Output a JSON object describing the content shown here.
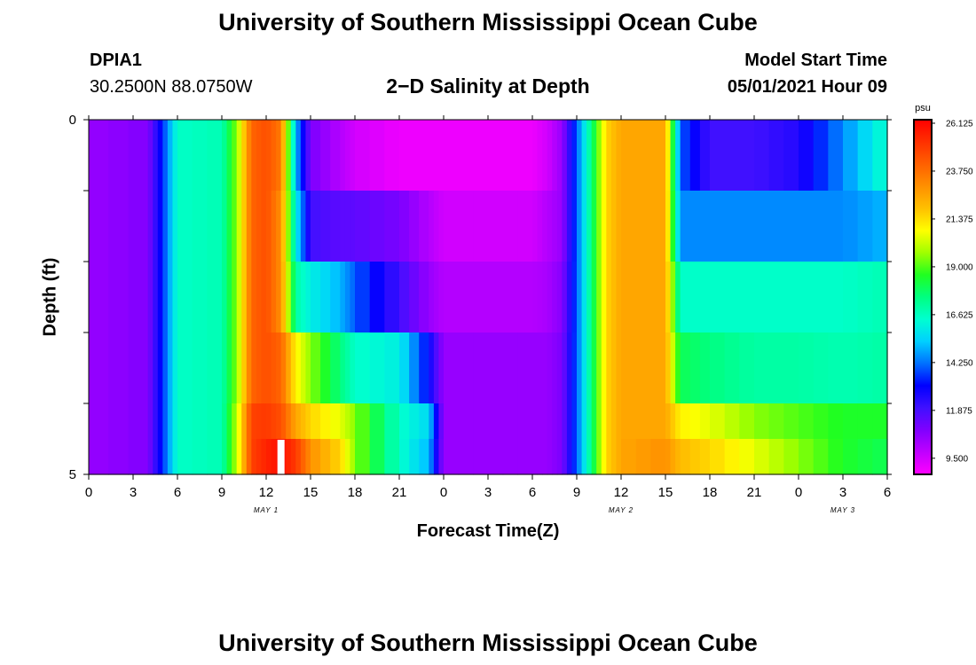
{
  "header": {
    "title": "University of Southern Mississippi Ocean Cube",
    "station_id": "DPIA1",
    "station_coords": "30.2500N  88.0750W",
    "model_start_label": "Model Start Time",
    "model_start_value": "05/01/2021 Hour 09",
    "footer_title": "University of Southern Mississippi Ocean Cube"
  },
  "chart_data": {
    "type": "heatmap",
    "title": "2−D Salinity at Depth",
    "xlabel": "Forecast Time(Z)",
    "ylabel": "Depth (ft)",
    "x_tick_labels": [
      "0",
      "3",
      "6",
      "9",
      "12",
      "15",
      "18",
      "21",
      "0",
      "3",
      "6",
      "9",
      "12",
      "15",
      "18",
      "21",
      "0",
      "3",
      "6"
    ],
    "y_tick_labels": [
      "0",
      "5"
    ],
    "ylim": [
      0,
      5
    ],
    "date_labels": [
      "MAY 1",
      "MAY 2",
      "MAY 3"
    ],
    "colorbar": {
      "unit": "psu",
      "tick_labels": [
        "26.125",
        "23.750",
        "21.375",
        "19.000",
        "16.625",
        "14.250",
        "11.875",
        "9.500"
      ],
      "range": [
        8.7,
        26.3
      ],
      "colors": [
        "#ff00ff",
        "#c000ff",
        "#8000ff",
        "#4010ff",
        "#0000ff",
        "#0070ff",
        "#00d0ff",
        "#00ffd0",
        "#00ff80",
        "#20ff20",
        "#a0ff00",
        "#ffff00",
        "#ffc000",
        "#ff9000",
        "#ff6000",
        "#ff3000",
        "#ff0000"
      ]
    },
    "depth_rows": [
      0,
      1,
      2,
      3,
      4,
      4.5
    ],
    "time_hours": [
      0,
      4,
      5,
      6,
      9,
      10,
      11,
      12,
      13,
      14,
      15,
      17,
      18,
      21,
      23,
      24,
      27,
      30,
      31,
      32,
      33,
      34,
      35,
      36,
      39,
      40,
      42,
      45,
      48,
      51,
      54
    ],
    "salinity": [
      [
        10.5,
        10.9,
        13.5,
        16.5,
        16.8,
        19.5,
        24.0,
        24.5,
        23.5,
        15.0,
        11.0,
        10.0,
        9.5,
        9.0,
        9.0,
        9.0,
        9.0,
        9.0,
        9.5,
        10.5,
        14.0,
        17.5,
        21.5,
        22.5,
        22.5,
        14.0,
        12.0,
        12.0,
        12.5,
        14.5,
        16.5
      ],
      [
        10.5,
        10.9,
        13.5,
        16.5,
        16.8,
        19.5,
        24.0,
        24.5,
        23.0,
        16.0,
        12.0,
        11.5,
        11.5,
        11.0,
        10.0,
        9.5,
        9.5,
        9.5,
        10.0,
        10.5,
        14.0,
        17.5,
        21.5,
        22.5,
        22.5,
        14.5,
        14.5,
        14.5,
        14.5,
        14.5,
        15.0
      ],
      [
        10.5,
        10.9,
        13.5,
        16.5,
        16.8,
        19.5,
        24.0,
        24.5,
        23.0,
        17.0,
        16.0,
        15.0,
        14.0,
        12.0,
        10.5,
        10.0,
        10.0,
        10.0,
        10.2,
        10.8,
        14.0,
        17.5,
        21.5,
        22.5,
        22.5,
        16.5,
        16.5,
        16.5,
        16.5,
        16.5,
        16.8
      ],
      [
        10.5,
        10.9,
        13.5,
        16.5,
        16.8,
        19.5,
        24.0,
        24.5,
        24.0,
        21.0,
        19.5,
        17.5,
        16.5,
        16.0,
        13.0,
        10.5,
        10.5,
        10.5,
        10.5,
        11.0,
        14.0,
        17.5,
        21.5,
        22.5,
        22.5,
        18.0,
        17.5,
        17.0,
        17.0,
        16.8,
        17.0
      ],
      [
        10.5,
        10.9,
        13.5,
        16.5,
        16.8,
        20.0,
        24.8,
        25.0,
        24.5,
        22.5,
        21.5,
        20.5,
        19.5,
        16.5,
        15.5,
        10.5,
        10.5,
        10.5,
        10.5,
        11.0,
        14.0,
        17.5,
        21.5,
        22.5,
        22.5,
        21.0,
        20.5,
        19.5,
        19.0,
        18.5,
        18.5
      ],
      [
        10.5,
        10.9,
        13.5,
        16.5,
        16.8,
        20.0,
        24.8,
        25.5,
        26.0,
        25.0,
        23.0,
        21.5,
        19.5,
        16.5,
        15.0,
        10.5,
        10.5,
        10.5,
        10.5,
        11.0,
        14.0,
        17.5,
        21.5,
        22.5,
        23.0,
        22.0,
        21.5,
        20.5,
        19.5,
        18.5,
        18.0
      ]
    ],
    "missing_marker": {
      "hour": 13,
      "depth_row": 5
    }
  }
}
